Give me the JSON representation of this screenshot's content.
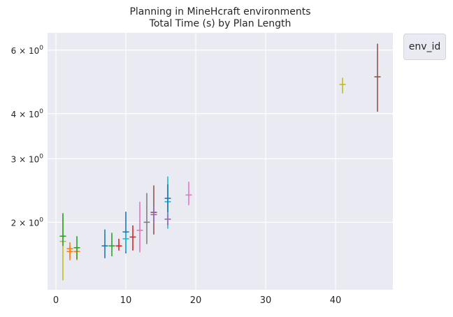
{
  "title_lines": [
    "Planning in MineHcraft environments",
    "Total Time (s) by Plan Length"
  ],
  "legend_title": "env_id",
  "chart_data": {
    "type": "scatter",
    "title": "Planning in MineHcraft environments\nTotal Time (s) by Plan Length",
    "xlabel": "",
    "ylabel": "",
    "xlim": [
      -1.2,
      48.2
    ],
    "ylim": [
      1.3,
      6.7
    ],
    "yscale": "log",
    "grid": true,
    "legend_title": "env_id",
    "legend_placement": "outside top-right",
    "x_ticks": [
      0,
      10,
      20,
      30,
      40
    ],
    "x_tick_labels": [
      "0",
      "10",
      "20",
      "30",
      "40"
    ],
    "y_ticks": [
      2,
      3,
      4,
      6
    ],
    "y_tick_labels": [
      {
        "base": "2 × 10",
        "exp": "0"
      },
      {
        "base": "3 × 10",
        "exp": "0"
      },
      {
        "base": "4 × 10",
        "exp": "0"
      },
      {
        "base": "6 × 10",
        "exp": "0"
      }
    ],
    "points": [
      {
        "x": 1,
        "y": 1.77,
        "low": 1.38,
        "high": 2.1,
        "color": "#bcbd22"
      },
      {
        "x": 1,
        "y": 1.83,
        "low": 1.72,
        "high": 2.12,
        "color": "#2ca02c"
      },
      {
        "x": 2,
        "y": 1.69,
        "low": 1.6,
        "high": 1.76,
        "color": "#ff7f0e"
      },
      {
        "x": 2,
        "y": 1.66,
        "low": 1.57,
        "high": 1.72,
        "color": "#ff7f0e"
      },
      {
        "x": 3,
        "y": 1.66,
        "low": 1.57,
        "high": 1.71,
        "color": "#ff7f0e"
      },
      {
        "x": 3,
        "y": 1.7,
        "low": 1.58,
        "high": 1.83,
        "color": "#2ca02c"
      },
      {
        "x": 7,
        "y": 1.72,
        "low": 1.59,
        "high": 1.91,
        "color": "#1f77b4"
      },
      {
        "x": 8,
        "y": 1.72,
        "low": 1.61,
        "high": 1.87,
        "color": "#2ca02c"
      },
      {
        "x": 9,
        "y": 1.72,
        "low": 1.67,
        "high": 1.8,
        "color": "#d62728"
      },
      {
        "x": 10,
        "y": 1.88,
        "low": 1.64,
        "high": 2.14,
        "color": "#1f77b4"
      },
      {
        "x": 10,
        "y": 1.8,
        "low": 1.66,
        "high": 1.87,
        "color": "#17becf"
      },
      {
        "x": 11,
        "y": 1.82,
        "low": 1.67,
        "high": 1.96,
        "color": "#d62728"
      },
      {
        "x": 12,
        "y": 1.9,
        "low": 1.65,
        "high": 2.28,
        "color": "#e377c2"
      },
      {
        "x": 13,
        "y": 2.0,
        "low": 1.74,
        "high": 2.41,
        "color": "#7f7f7f"
      },
      {
        "x": 14,
        "y": 2.13,
        "low": 1.85,
        "high": 2.53,
        "color": "#8c564b"
      },
      {
        "x": 14,
        "y": 2.1,
        "low": 1.98,
        "high": 2.22,
        "color": "#9467bd"
      },
      {
        "x": 16,
        "y": 2.28,
        "low": 1.92,
        "high": 2.68,
        "color": "#17becf"
      },
      {
        "x": 16,
        "y": 2.33,
        "low": 2.13,
        "high": 2.55,
        "color": "#1f77b4"
      },
      {
        "x": 16,
        "y": 2.04,
        "low": 1.96,
        "high": 2.12,
        "color": "#9467bd"
      },
      {
        "x": 19,
        "y": 2.38,
        "low": 2.23,
        "high": 2.59,
        "color": "#e377c2"
      },
      {
        "x": 41,
        "y": 4.82,
        "low": 4.55,
        "high": 5.03,
        "color": "#bcbd22"
      },
      {
        "x": 46,
        "y": 5.06,
        "low": 4.05,
        "high": 6.25,
        "color": "#8c564b"
      }
    ]
  }
}
